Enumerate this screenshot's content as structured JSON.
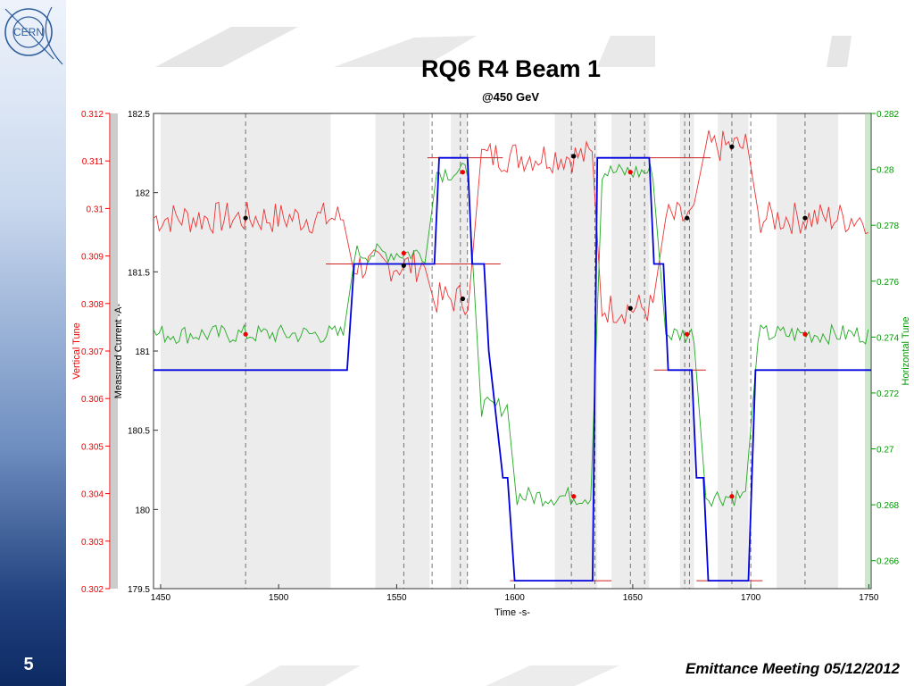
{
  "slide": {
    "logo_text": "CERN",
    "title": "RQ6 R4 Beam 1",
    "subtitle": "@450 GeV",
    "number": "5",
    "footer": "Emittance Meeting 05/12/2012"
  },
  "colors": {
    "current": "#0000dd",
    "vertical_tune": "#ee3333",
    "horizontal_tune": "#22aa22",
    "fit_lines": "#cc2222",
    "band": "#ececec",
    "left_axis": "#ee0000",
    "right_axis": "#009900"
  },
  "chart_data": {
    "type": "line",
    "xlabel": "Time -s-",
    "ylabel_current": "Measured Current -A-",
    "ylabel_vertical": "Vertical Tune",
    "ylabel_horizontal": "Horizontal Tune",
    "xlim": [
      1447,
      1751
    ],
    "x_ticks": [
      1450,
      1500,
      1550,
      1600,
      1650,
      1700,
      1750
    ],
    "current_axis": {
      "lim": [
        179.5,
        182.5
      ],
      "ticks": [
        179.5,
        180,
        180.5,
        181,
        181.5,
        182,
        182.5
      ]
    },
    "vertical_tune_axis": {
      "lim": [
        0.302,
        0.312
      ],
      "ticks": [
        0.302,
        0.303,
        0.304,
        0.305,
        0.306,
        0.307,
        0.308,
        0.309,
        0.31,
        0.311,
        0.312
      ]
    },
    "horizontal_tune_axis": {
      "lim": [
        0.265,
        0.282
      ],
      "ticks": [
        0.266,
        0.268,
        0.27,
        0.272,
        0.274,
        0.276,
        0.278,
        0.28,
        0.282
      ]
    },
    "gray_bands": [
      [
        1450,
        1522
      ],
      [
        1541,
        1564
      ],
      [
        1573,
        1580
      ],
      [
        1617,
        1635
      ],
      [
        1641,
        1657
      ],
      [
        1670,
        1676
      ],
      [
        1686,
        1699
      ],
      [
        1711,
        1737
      ]
    ],
    "dashed_lines": [
      1486,
      1553,
      1565,
      1577,
      1580,
      1624,
      1634,
      1649,
      1655,
      1672,
      1674,
      1692,
      1700,
      1723
    ],
    "current": {
      "name": "Measured Current",
      "x": [
        1447,
        1529,
        1532,
        1566,
        1568,
        1580,
        1582,
        1587,
        1589,
        1595,
        1597,
        1600,
        1633,
        1635,
        1657,
        1659,
        1663,
        1665,
        1675,
        1677,
        1680,
        1682,
        1699,
        1702,
        1751
      ],
      "y": [
        180.88,
        180.88,
        181.55,
        181.55,
        182.22,
        182.22,
        181.55,
        181.55,
        181.0,
        180.2,
        180.2,
        179.55,
        179.55,
        182.22,
        182.22,
        181.55,
        181.55,
        180.88,
        180.88,
        180.2,
        180.2,
        179.55,
        179.55,
        180.88,
        180.88
      ]
    },
    "vertical_tune": {
      "name": "Vertical Tune",
      "segments": [
        {
          "from": 1447,
          "to": 1528,
          "level": 0.3098
        },
        {
          "from": 1532,
          "to": 1563,
          "level": 0.3088
        },
        {
          "from": 1567,
          "to": 1581,
          "level": 0.3081
        },
        {
          "from": 1586,
          "to": 1633,
          "level": 0.3111
        },
        {
          "from": 1637,
          "to": 1659,
          "level": 0.3079
        },
        {
          "from": 1664,
          "to": 1677,
          "level": 0.3098
        },
        {
          "from": 1681,
          "to": 1698,
          "level": 0.3113
        },
        {
          "from": 1703,
          "to": 1751,
          "level": 0.3098
        }
      ]
    },
    "horizontal_tune": {
      "name": "Horizontal Tune",
      "segments": [
        {
          "from": 1447,
          "to": 1528,
          "level": 0.2741
        },
        {
          "from": 1532,
          "to": 1563,
          "level": 0.277
        },
        {
          "from": 1567,
          "to": 1581,
          "level": 0.2799
        },
        {
          "from": 1586,
          "to": 1597,
          "level": 0.2715
        },
        {
          "from": 1601,
          "to": 1633,
          "level": 0.2683
        },
        {
          "from": 1637,
          "to": 1659,
          "level": 0.2799
        },
        {
          "from": 1664,
          "to": 1677,
          "level": 0.2741
        },
        {
          "from": 1681,
          "to": 1698,
          "level": 0.2683
        },
        {
          "from": 1703,
          "to": 1751,
          "level": 0.2741
        }
      ]
    },
    "black_markers": [
      [
        1486,
        0.3098
      ],
      [
        1553,
        0.3088
      ],
      [
        1578,
        0.3081
      ],
      [
        1625,
        0.3111
      ],
      [
        1649,
        0.3079
      ],
      [
        1673,
        0.3098
      ],
      [
        1692,
        0.3113
      ],
      [
        1723,
        0.3098
      ]
    ],
    "red_markers": [
      [
        1486,
        0.2741
      ],
      [
        1553,
        0.277
      ],
      [
        1578,
        0.2799
      ],
      [
        1625,
        0.2683
      ],
      [
        1649,
        0.2799
      ],
      [
        1673,
        0.2741
      ],
      [
        1692,
        0.2683
      ],
      [
        1723,
        0.2741
      ]
    ],
    "fit_segments": [
      {
        "from": 1472,
        "to": 1500,
        "current": 180.88
      },
      {
        "from": 1520,
        "to": 1594,
        "current": 181.55
      },
      {
        "from": 1563,
        "to": 1595,
        "current": 182.22
      },
      {
        "from": 1598,
        "to": 1641,
        "current": 179.55
      },
      {
        "from": 1645,
        "to": 1683,
        "current": 182.22
      },
      {
        "from": 1659,
        "to": 1681,
        "current": 180.88
      },
      {
        "from": 1677,
        "to": 1705,
        "current": 179.55
      }
    ]
  }
}
